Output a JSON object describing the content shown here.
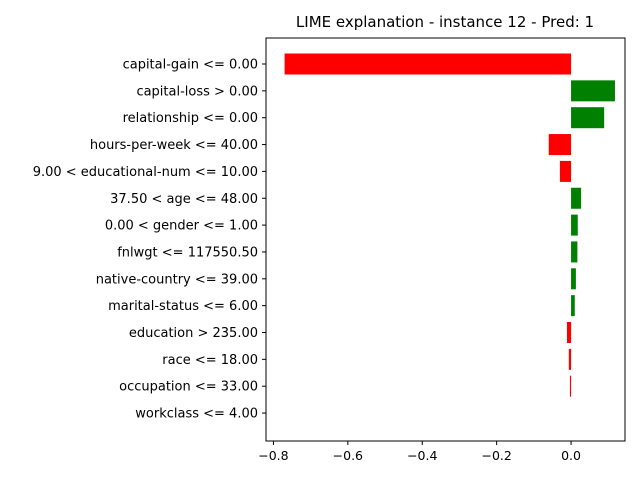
{
  "chart_data": {
    "type": "bar",
    "orientation": "horizontal",
    "title": "LIME explanation - instance 12 - Pred: 1",
    "xlabel": "",
    "ylabel": "",
    "xlim": [
      -0.82,
      0.145
    ],
    "xticks": [
      -0.8,
      -0.6,
      -0.4,
      -0.2,
      0.0
    ],
    "xtick_labels": [
      "−0.8",
      "−0.6",
      "−0.4",
      "−0.2",
      "0.0"
    ],
    "positive_color": "#008000",
    "negative_color": "#ff0000",
    "grid": false,
    "categories": [
      "capital-gain <= 0.00",
      "capital-loss > 0.00",
      "relationship <= 0.00",
      "hours-per-week <= 40.00",
      "9.00 < educational-num <= 10.00",
      "37.50 < age <= 48.00",
      "0.00 < gender <= 1.00",
      "fnlwgt <= 117550.50",
      "native-country <= 39.00",
      "marital-status <= 6.00",
      "education > 235.00",
      "race <= 18.00",
      "occupation <= 33.00",
      "workclass <= 4.00"
    ],
    "values": [
      -0.77,
      0.118,
      0.089,
      -0.06,
      -0.03,
      0.027,
      0.018,
      0.017,
      0.013,
      0.01,
      -0.011,
      -0.006,
      -0.003,
      0.0
    ]
  }
}
